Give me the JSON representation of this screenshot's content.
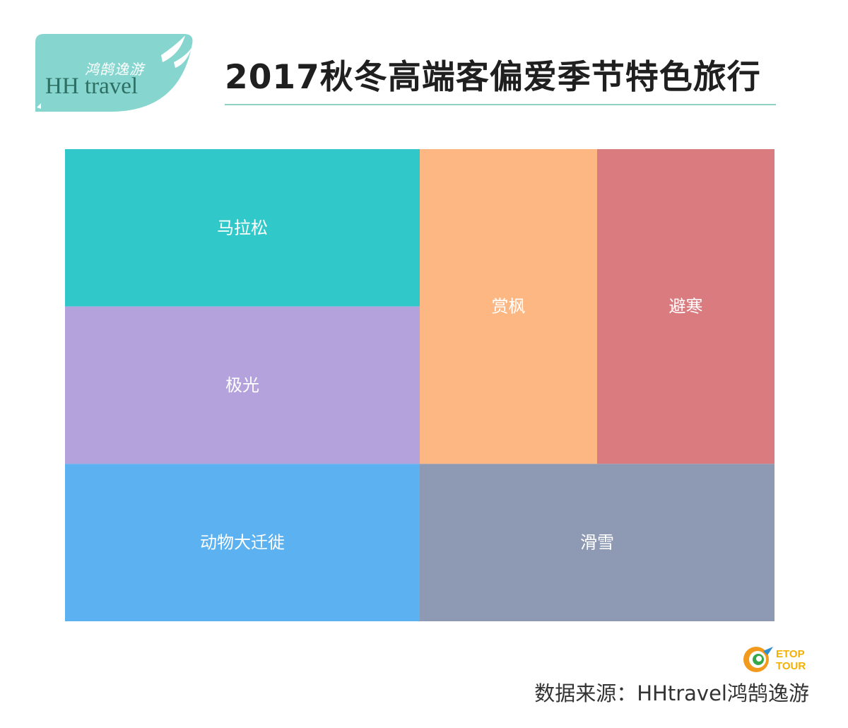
{
  "header": {
    "logo_cn": "鸿鹄逸游",
    "logo_en": "HH travel",
    "title": "2017秋冬高端客偏爱季节特色旅行"
  },
  "chart_data": {
    "type": "treemap",
    "title": "2017秋冬高端客偏爱季节特色旅行",
    "items": [
      {
        "name": "马拉松",
        "value": 16.7,
        "color": "#31c8ca"
      },
      {
        "name": "极光",
        "value": 16.7,
        "color": "#b4a2dd"
      },
      {
        "name": "动物大迁徙",
        "value": 16.7,
        "color": "#5cb1f0"
      },
      {
        "name": "赏枫",
        "value": 16.7,
        "color": "#fdb783"
      },
      {
        "name": "避寒",
        "value": 16.7,
        "color": "#d97b7f"
      },
      {
        "name": "滑雪",
        "value": 16.7,
        "color": "#8e9ab3"
      }
    ]
  },
  "footer": {
    "badge_top": "ETOP",
    "badge_bottom": "TOUR",
    "source": "数据来源：HHtravel鸿鹄逸游"
  }
}
